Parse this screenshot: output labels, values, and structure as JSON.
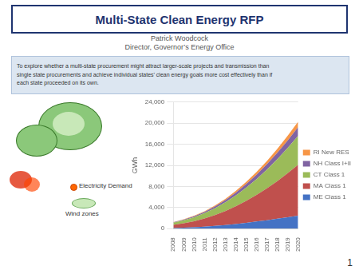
{
  "chart_data": {
    "type": "area",
    "title": "Multi-State Clean Energy RFP",
    "subtitle": [
      "Patrick Woodcock",
      "Director, Governor’s Energy Office"
    ],
    "annotations": [
      "To explore whether a multi-state procurement might attract larger-scale projects and transmission than\nsingle state procurements and achieve individual states’ clean energy goals more cost effectively than if\neach state proceeded on its own.",
      "Electricity Demand",
      "Wind zones",
      "1"
    ],
    "categories": [
      "2008",
      "2009",
      "2010",
      "2011",
      "2012",
      "2013",
      "2014",
      "2015",
      "2016",
      "2017",
      "2018",
      "2019",
      "2020"
    ],
    "series": [
      {
        "name": "ME Class 1",
        "color": "#4472c4",
        "values": [
          120,
          180,
          260,
          370,
          510,
          680,
          880,
          1100,
          1340,
          1600,
          1870,
          2160,
          2460
        ]
      },
      {
        "name": "MA Class 1",
        "color": "#c0504d",
        "values": [
          600,
          850,
          1150,
          1550,
          2050,
          2650,
          3350,
          4150,
          5050,
          6050,
          7150,
          8350,
          9650
        ]
      },
      {
        "name": "CT Class 1",
        "color": "#9bbb59",
        "values": [
          400,
          560,
          760,
          1010,
          1310,
          1660,
          2060,
          2510,
          3010,
          3560,
          4160,
          4810,
          5510
        ]
      },
      {
        "name": "NH Class I+II",
        "color": "#8064a2",
        "values": [
          80,
          120,
          170,
          230,
          310,
          410,
          530,
          670,
          830,
          1010,
          1210,
          1430,
          1670
        ]
      },
      {
        "name": "RI New RES",
        "color": "#f79646",
        "values": [
          50,
          70,
          100,
          140,
          190,
          250,
          330,
          420,
          520,
          630,
          750,
          880,
          1020
        ]
      }
    ],
    "y_label": "GWh",
    "ylim": [
      0,
      24000
    ],
    "yticks": [
      0,
      {
        "value": 4000,
        "label": "4,000"
      },
      {
        "value": 8000,
        "label": "8,000"
      },
      {
        "value": 12000,
        "label": "12,000"
      },
      {
        "value": 16000,
        "label": "16,000"
      },
      {
        "value": 20000,
        "label": "20,000"
      },
      {
        "value": 24000,
        "label": "24,000"
      }
    ],
    "stacked": true,
    "grid": true,
    "legend": "right"
  }
}
